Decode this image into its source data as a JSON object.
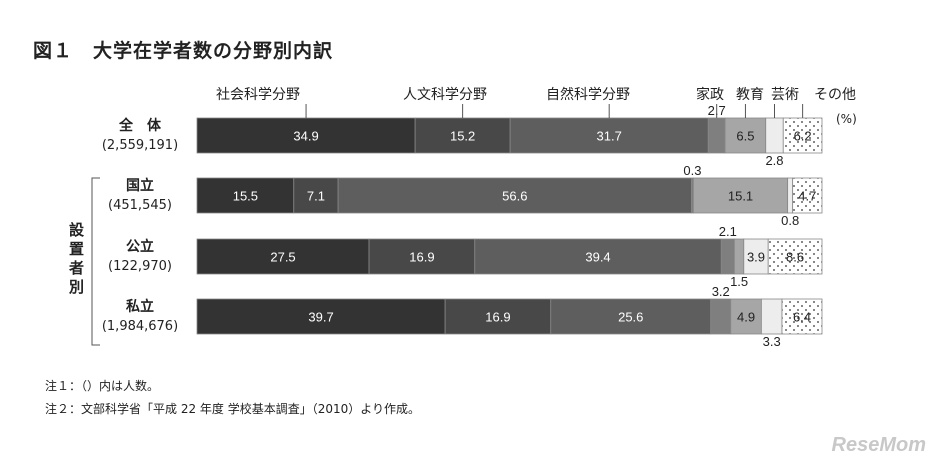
{
  "chart_data": {
    "type": "bar",
    "orientation": "horizontal-stacked-100",
    "title": "図１　大学在学者数の分野別内訳",
    "unit": "(%)",
    "series_names": [
      "社会科学分野",
      "人文科学分野",
      "自然科学分野",
      "家政",
      "教育",
      "芸術",
      "その他"
    ],
    "colors": [
      "#333333",
      "#484848",
      "#5e5e5e",
      "#7f7f7f",
      "#a6a6a6",
      "#ededed",
      "#ffffff"
    ],
    "group_label": "設置者別",
    "rows": [
      {
        "name": "全　体",
        "count": "(2,559,191)",
        "values": [
          34.9,
          15.2,
          31.7,
          2.7,
          6.5,
          2.8,
          6.2
        ]
      },
      {
        "name": "国立",
        "count": "(451,545)",
        "values": [
          15.5,
          7.1,
          56.6,
          0.3,
          15.1,
          0.8,
          4.7
        ]
      },
      {
        "name": "公立",
        "count": "(122,970)",
        "values": [
          27.5,
          16.9,
          39.4,
          2.1,
          1.5,
          3.9,
          8.6
        ]
      },
      {
        "name": "私立",
        "count": "(1,984,676)",
        "values": [
          39.7,
          16.9,
          25.6,
          3.2,
          4.9,
          3.3,
          6.4
        ]
      }
    ]
  },
  "notes": [
    "注１：（）内は人数。",
    "注２：文部科学省「平成 22 年度 学校基本調査」（2010）より作成。"
  ],
  "logo": "ReseMom"
}
